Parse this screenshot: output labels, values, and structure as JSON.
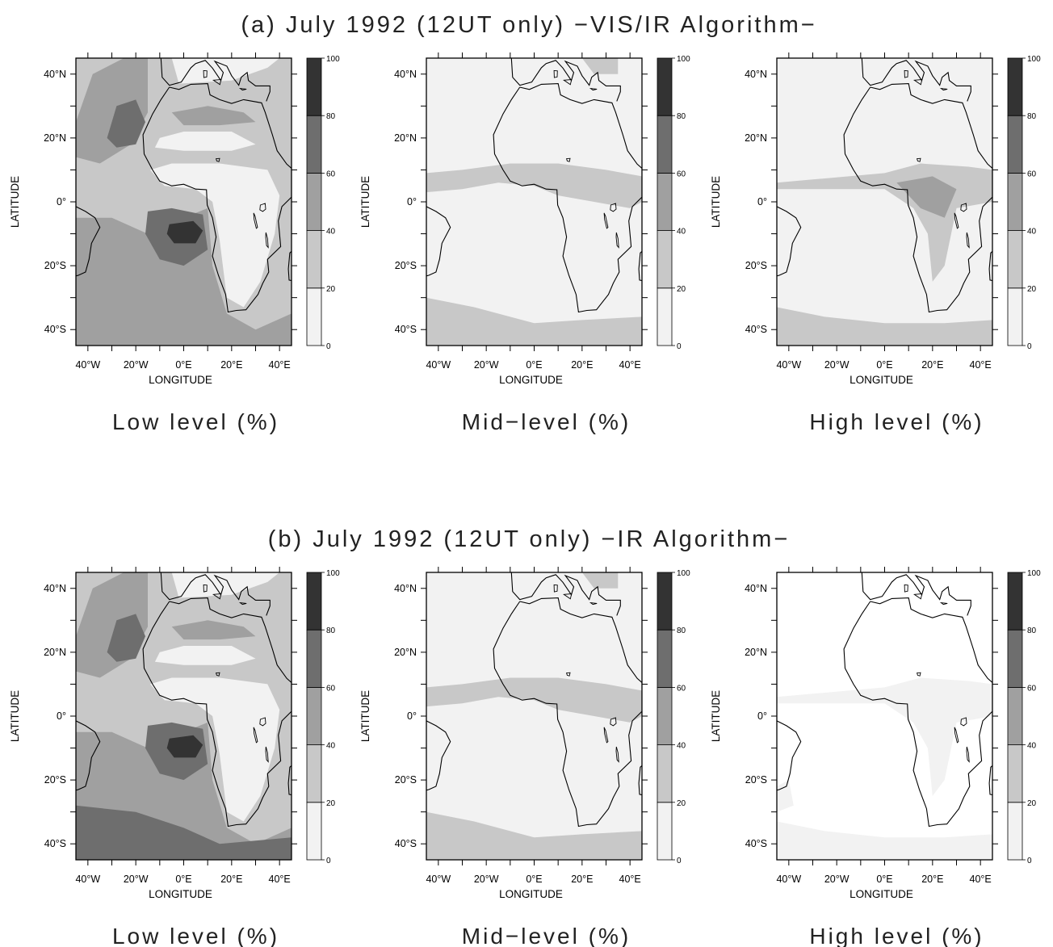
{
  "rows": [
    {
      "title": "(a) July 1992 (12UT only) −VIS/IR Algorithm−",
      "panels": [
        {
          "caption": "Low level (%)"
        },
        {
          "caption": "Mid−level (%)"
        },
        {
          "caption": "High level (%)"
        }
      ]
    },
    {
      "title": "(b) July 1992 (12UT only) −IR Algorithm−",
      "panels": [
        {
          "caption": "Low level (%)"
        },
        {
          "caption": "Mid−level (%)"
        },
        {
          "caption": "High level (%)"
        }
      ]
    }
  ],
  "axes": {
    "xlabel": "LONGITUDE",
    "ylabel": "LATITUDE",
    "lon_range": [
      -45,
      45
    ],
    "lat_range": [
      -45,
      45
    ],
    "x_ticks": [
      {
        "value": -40,
        "label": "40°W"
      },
      {
        "value": -20,
        "label": "20°W"
      },
      {
        "value": 0,
        "label": "0°E"
      },
      {
        "value": 20,
        "label": "20°E"
      },
      {
        "value": 40,
        "label": "40°E"
      }
    ],
    "y_ticks": [
      {
        "value": 40,
        "label": "40°N"
      },
      {
        "value": 20,
        "label": "20°N"
      },
      {
        "value": 0,
        "label": "0°"
      },
      {
        "value": -20,
        "label": "20°S"
      },
      {
        "value": -40,
        "label": "40°S"
      }
    ]
  },
  "colorbar": {
    "levels": [
      0,
      20,
      40,
      60,
      80,
      100
    ],
    "labels": [
      "0",
      "20",
      "40",
      "60",
      "80",
      "100"
    ],
    "colors": [
      "#f2f2f2",
      "#c8c8c8",
      "#a0a0a0",
      "#6e6e6e",
      "#333333"
    ]
  }
}
